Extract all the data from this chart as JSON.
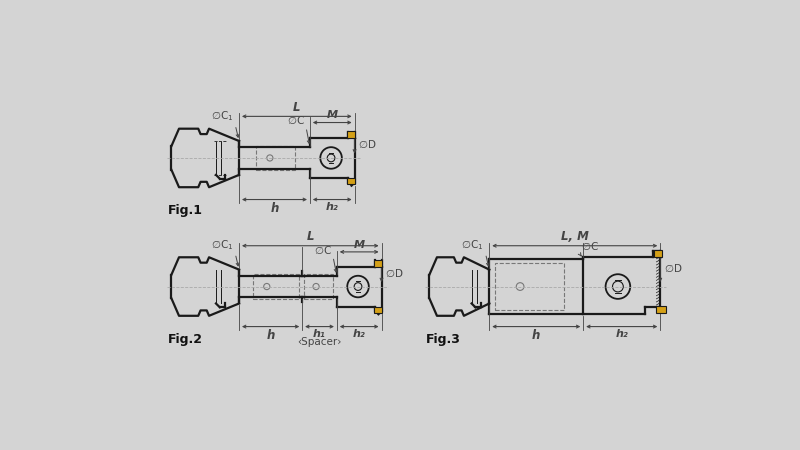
{
  "bg_color": "#d4d4d4",
  "lc": "#1a1a1a",
  "ic": "#d4a017",
  "dc": "#444444",
  "gc": "#888888",
  "fig1_label": "Fig.1",
  "fig2_label": "Fig.2",
  "fig3_label": "Fig.3"
}
